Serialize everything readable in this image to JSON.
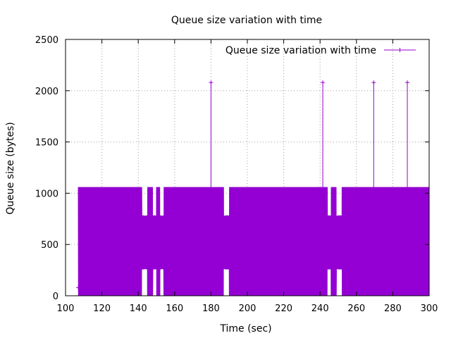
{
  "chart_data": {
    "type": "line",
    "title": "Queue size variation with time",
    "xlabel": "Time (sec)",
    "ylabel": "Queue size (bytes)",
    "xlim": [
      100,
      300
    ],
    "ylim": [
      0,
      2500
    ],
    "xticks": [
      100,
      120,
      140,
      160,
      180,
      200,
      220,
      240,
      260,
      280,
      300
    ],
    "yticks": [
      0,
      500,
      1000,
      1500,
      2000,
      2500
    ],
    "grid": true,
    "legend_position": "top-right",
    "series": [
      {
        "name": "Queue size variation with time",
        "color": "#9400d3",
        "marker": "plus",
        "oscillation": {
          "x_range": [
            107,
            300
          ],
          "levels": [
            0,
            260,
            520,
            780,
            1060
          ],
          "gaps": [
            [
              142,
              145
            ],
            [
              148,
              150
            ],
            [
              152,
              154
            ],
            [
              187,
              190
            ],
            [
              244,
              246
            ],
            [
              249,
              252
            ]
          ]
        },
        "spikes": [
          {
            "x": 180,
            "y": 2080
          },
          {
            "x": 241.5,
            "y": 2080
          },
          {
            "x": 269.5,
            "y": 2080
          },
          {
            "x": 288,
            "y": 2080
          }
        ],
        "markers": [
          {
            "x": 107,
            "y": 80
          },
          {
            "x": 200,
            "y": 30
          }
        ]
      }
    ]
  }
}
